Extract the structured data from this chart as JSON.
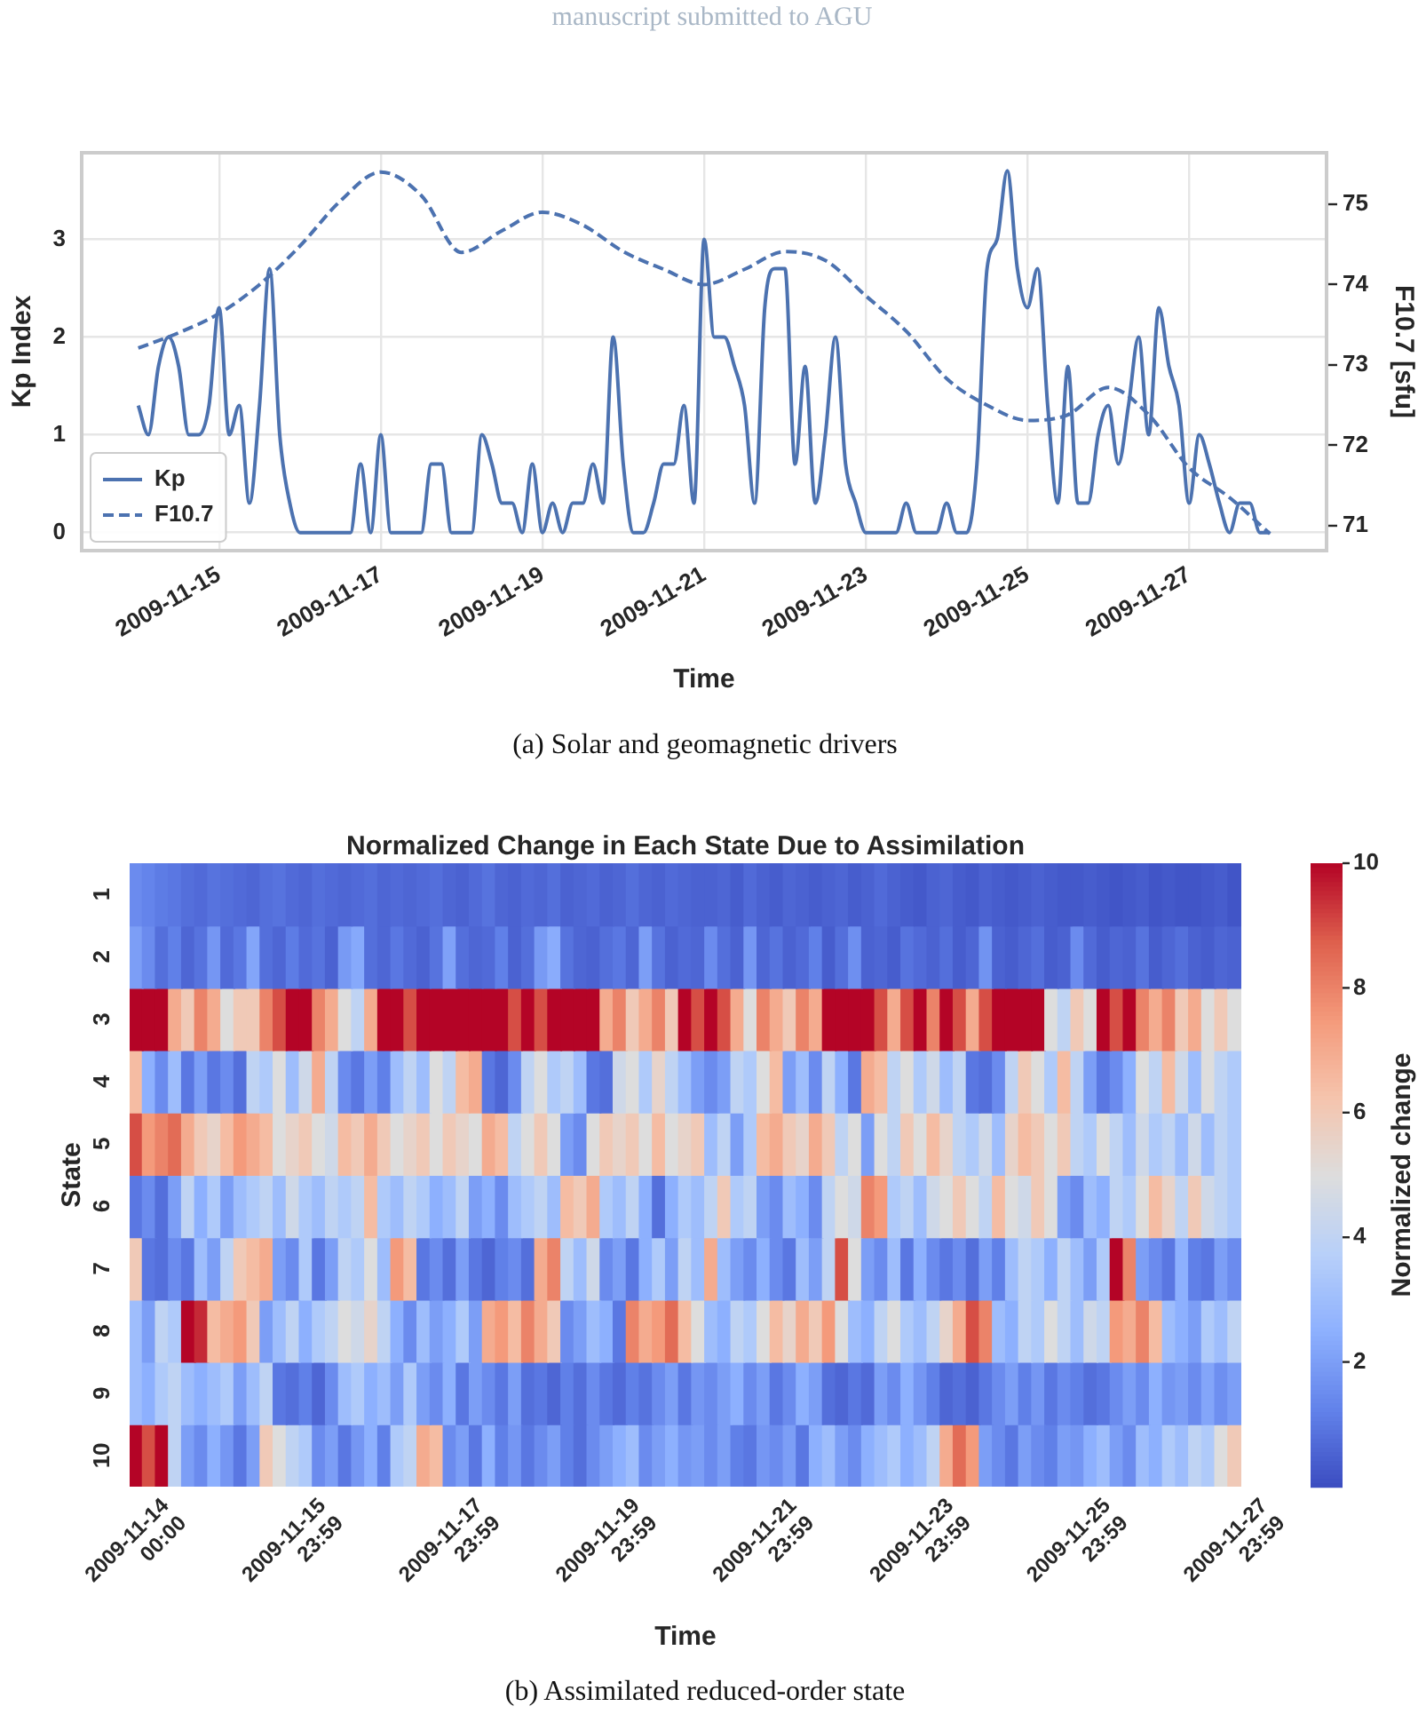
{
  "chart_data": [
    {
      "type": "line",
      "xlabel": "Time",
      "ylabel": "Kp Index",
      "y2label": "F10.7 [sfu]",
      "x": [
        "2009-11-14T00:00",
        "2009-11-14T03:00",
        "2009-11-14T06:00",
        "2009-11-14T09:00",
        "2009-11-14T12:00",
        "2009-11-14T15:00",
        "2009-11-14T18:00",
        "2009-11-14T21:00",
        "2009-11-15T00:00",
        "2009-11-15T03:00",
        "2009-11-15T06:00",
        "2009-11-15T09:00",
        "2009-11-15T12:00",
        "2009-11-15T15:00",
        "2009-11-15T18:00",
        "2009-11-15T21:00",
        "2009-11-16T00:00",
        "2009-11-16T03:00",
        "2009-11-16T06:00",
        "2009-11-16T09:00",
        "2009-11-16T12:00",
        "2009-11-16T15:00",
        "2009-11-16T18:00",
        "2009-11-16T21:00",
        "2009-11-17T00:00",
        "2009-11-17T03:00",
        "2009-11-17T06:00",
        "2009-11-17T09:00",
        "2009-11-17T12:00",
        "2009-11-17T15:00",
        "2009-11-17T18:00",
        "2009-11-17T21:00",
        "2009-11-18T00:00",
        "2009-11-18T03:00",
        "2009-11-18T06:00",
        "2009-11-18T09:00",
        "2009-11-18T12:00",
        "2009-11-18T15:00",
        "2009-11-18T18:00",
        "2009-11-18T21:00",
        "2009-11-19T00:00",
        "2009-11-19T03:00",
        "2009-11-19T06:00",
        "2009-11-19T09:00",
        "2009-11-19T12:00",
        "2009-11-19T15:00",
        "2009-11-19T18:00",
        "2009-11-19T21:00",
        "2009-11-20T00:00",
        "2009-11-20T03:00",
        "2009-11-20T06:00",
        "2009-11-20T09:00",
        "2009-11-20T12:00",
        "2009-11-20T15:00",
        "2009-11-20T18:00",
        "2009-11-20T21:00",
        "2009-11-21T00:00",
        "2009-11-21T03:00",
        "2009-11-21T06:00",
        "2009-11-21T09:00",
        "2009-11-21T12:00",
        "2009-11-21T15:00",
        "2009-11-21T18:00",
        "2009-11-21T21:00",
        "2009-11-22T00:00",
        "2009-11-22T03:00",
        "2009-11-22T06:00",
        "2009-11-22T09:00",
        "2009-11-22T12:00",
        "2009-11-22T15:00",
        "2009-11-22T18:00",
        "2009-11-22T21:00",
        "2009-11-23T00:00",
        "2009-11-23T03:00",
        "2009-11-23T06:00",
        "2009-11-23T09:00",
        "2009-11-23T12:00",
        "2009-11-23T15:00",
        "2009-11-23T18:00",
        "2009-11-23T21:00",
        "2009-11-24T00:00",
        "2009-11-24T03:00",
        "2009-11-24T06:00",
        "2009-11-24T09:00",
        "2009-11-24T12:00",
        "2009-11-24T15:00",
        "2009-11-24T18:00",
        "2009-11-24T21:00",
        "2009-11-25T00:00",
        "2009-11-25T03:00",
        "2009-11-25T06:00",
        "2009-11-25T09:00",
        "2009-11-25T12:00",
        "2009-11-25T15:00",
        "2009-11-25T18:00",
        "2009-11-25T21:00",
        "2009-11-26T00:00",
        "2009-11-26T03:00",
        "2009-11-26T06:00",
        "2009-11-26T09:00",
        "2009-11-26T12:00",
        "2009-11-26T15:00",
        "2009-11-26T18:00",
        "2009-11-26T21:00",
        "2009-11-27T00:00",
        "2009-11-27T03:00",
        "2009-11-27T06:00",
        "2009-11-27T09:00",
        "2009-11-27T12:00",
        "2009-11-27T15:00",
        "2009-11-27T18:00",
        "2009-11-27T21:00",
        "2009-11-28T00:00"
      ],
      "xlim": [
        "2009-11-13T07:12",
        "2009-11-28T16:48"
      ],
      "xticks": [
        "2009-11-15",
        "2009-11-17",
        "2009-11-19",
        "2009-11-21",
        "2009-11-23",
        "2009-11-25",
        "2009-11-27"
      ],
      "ylim": [
        -0.185,
        3.885
      ],
      "yticks": [
        0,
        1,
        2,
        3
      ],
      "y2lim": [
        70.69,
        75.64
      ],
      "y2ticks": [
        71,
        72,
        73,
        74,
        75
      ],
      "grid": true,
      "legend": "bottom left",
      "series": [
        {
          "name": "Kp",
          "color": "#4c72b0",
          "line_style": "solid",
          "values": [
            1.3,
            1.0,
            1.7,
            2.0,
            1.7,
            1.0,
            1.0,
            1.3,
            2.3,
            1.0,
            1.3,
            0.3,
            1.3,
            2.7,
            1.0,
            0.3,
            0,
            0,
            0,
            0,
            0,
            0,
            0.7,
            0,
            1.0,
            0,
            0,
            0,
            0,
            0.7,
            0.7,
            0,
            0,
            0,
            1.0,
            0.7,
            0.3,
            0.3,
            0,
            0.7,
            0,
            0.3,
            0,
            0.3,
            0.3,
            0.7,
            0.3,
            2.0,
            0.7,
            0,
            0,
            0.3,
            0.7,
            0.7,
            1.3,
            0.3,
            3.0,
            2.0,
            2.0,
            1.7,
            1.3,
            0.3,
            2.3,
            2.7,
            2.7,
            0.7,
            1.7,
            0.3,
            1.0,
            2.0,
            0.7,
            0.3,
            0,
            0,
            0,
            0,
            0.3,
            0,
            0,
            0,
            0.3,
            0,
            0,
            0.7,
            2.7,
            3.0,
            3.7,
            2.7,
            2.3,
            2.7,
            1.3,
            0.3,
            1.7,
            0.3,
            0.3,
            1.0,
            1.3,
            0.7,
            1.3,
            2.0,
            1.0,
            2.3,
            1.7,
            1.3,
            0.3,
            1.0,
            0.7,
            0.3,
            0,
            0.3,
            0.3,
            0,
            0
          ]
        },
        {
          "name": "F10.7",
          "color": "#4c72b0",
          "line_style": "dashed",
          "axis": "y2",
          "x": [
            "2009-11-14T00:00",
            "2009-11-14T12:00",
            "2009-11-15T00:00",
            "2009-11-15T12:00",
            "2009-11-16T00:00",
            "2009-11-16T12:00",
            "2009-11-17T00:00",
            "2009-11-17T12:00",
            "2009-11-18T00:00",
            "2009-11-18T12:00",
            "2009-11-19T00:00",
            "2009-11-19T12:00",
            "2009-11-20T00:00",
            "2009-11-20T12:00",
            "2009-11-21T00:00",
            "2009-11-21T12:00",
            "2009-11-22T00:00",
            "2009-11-22T12:00",
            "2009-11-23T00:00",
            "2009-11-23T12:00",
            "2009-11-24T00:00",
            "2009-11-24T12:00",
            "2009-11-25T00:00",
            "2009-11-25T12:00",
            "2009-11-26T00:00",
            "2009-11-26T12:00",
            "2009-11-27T00:00",
            "2009-11-27T12:00",
            "2009-11-28T00:00"
          ],
          "values": [
            73.21,
            73.4,
            73.64,
            74.0,
            74.48,
            75.04,
            75.4,
            75.11,
            74.4,
            74.67,
            74.9,
            74.74,
            74.41,
            74.19,
            74.0,
            74.19,
            74.41,
            74.3,
            73.86,
            73.42,
            72.83,
            72.5,
            72.31,
            72.38,
            72.72,
            72.38,
            71.72,
            71.35,
            70.9
          ]
        }
      ],
      "annotations": [
        "manuscript submitted to AGU",
        "(a) Solar and geomagnetic drivers"
      ]
    },
    {
      "type": "heatmap",
      "title": "Normalized Change in Each State Due to Assimilation",
      "xlabel": "Time",
      "ylabel": "State",
      "clabel": "Normalized change",
      "categories": [
        "2009-11-14\n00:00",
        null,
        null,
        null,
        null,
        null,
        null,
        null,
        null,
        null,
        null,
        null,
        "2009-11-15\n23:59",
        null,
        null,
        null,
        null,
        null,
        null,
        null,
        null,
        null,
        null,
        null,
        "2009-11-17\n23:59",
        null,
        null,
        null,
        null,
        null,
        null,
        null,
        null,
        null,
        null,
        null,
        "2009-11-19\n23:59",
        null,
        null,
        null,
        null,
        null,
        null,
        null,
        null,
        null,
        null,
        null,
        "2009-11-21\n23:59",
        null,
        null,
        null,
        null,
        null,
        null,
        null,
        null,
        null,
        null,
        null,
        "2009-11-23\n23:59",
        null,
        null,
        null,
        null,
        null,
        null,
        null,
        null,
        null,
        null,
        null,
        "2009-11-25\n23:59",
        null,
        null,
        null,
        null,
        null,
        null,
        null,
        null,
        null,
        null,
        null,
        "2009-11-27\n23:59"
      ],
      "y_categories": [
        "1",
        "2",
        "3",
        "4",
        "5",
        "6",
        "7",
        "8",
        "9",
        "10"
      ],
      "cells": [
        [
          1.5,
          1.3,
          1.1,
          1.0,
          0.8,
          0.7,
          0.9,
          0.8,
          0.7,
          0.6,
          0.8,
          0.9,
          0.7,
          0.6,
          0.8,
          0.7,
          0.6,
          0.7,
          0.8,
          0.6,
          0.7,
          0.6,
          0.7,
          0.8,
          0.6,
          0.5,
          0.7,
          0.9,
          0.6,
          0.5,
          0.7,
          0.6,
          0.8,
          0.5,
          0.6,
          0.7,
          0.5,
          0.6,
          0.8,
          0.6,
          0.5,
          0.7,
          0.6,
          0.5,
          0.5,
          0.6,
          0.4,
          0.7,
          0.5,
          0.4,
          0.6,
          0.5,
          0.4,
          0.5,
          0.6,
          0.4,
          0.5,
          0.7,
          0.5,
          0.4,
          0.3,
          0.5,
          0.6,
          0.4,
          0.3,
          0.5,
          0.4,
          0.3,
          0.4,
          0.5,
          0.4,
          0.3,
          0.3,
          0.4,
          0.3,
          0.2,
          0.3,
          0.4,
          0.2,
          0.3,
          0.2,
          0.2,
          0.3,
          0.4,
          0.2
        ],
        [
          2.0,
          1.5,
          0.8,
          1.2,
          0.6,
          0.9,
          1.8,
          0.7,
          1.0,
          2.2,
          0.8,
          0.6,
          1.1,
          0.7,
          0.9,
          0.5,
          1.9,
          2.3,
          0.8,
          0.6,
          1.0,
          0.7,
          0.5,
          0.9,
          2.1,
          0.8,
          0.6,
          0.7,
          1.2,
          0.5,
          0.8,
          1.9,
          2.4,
          0.9,
          0.6,
          0.5,
          0.8,
          1.0,
          0.6,
          2.0,
          0.9,
          0.5,
          0.7,
          0.6,
          1.5,
          0.8,
          0.5,
          1.8,
          0.6,
          0.9,
          0.5,
          0.7,
          1.2,
          0.4,
          0.8,
          1.6,
          0.5,
          0.6,
          0.4,
          0.9,
          0.7,
          0.5,
          0.8,
          0.4,
          0.6,
          1.7,
          0.5,
          0.4,
          0.6,
          0.8,
          0.4,
          0.5,
          1.5,
          0.7,
          0.4,
          0.6,
          0.5,
          0.9,
          0.4,
          0.6,
          0.8,
          0.5,
          0.4,
          0.6,
          0.5
        ],
        [
          10,
          10,
          10,
          7,
          6,
          8,
          7,
          5,
          6,
          6,
          8,
          9,
          10,
          10,
          8,
          7,
          5,
          4,
          7,
          10,
          10,
          9,
          10,
          10,
          10,
          10,
          10,
          10,
          10,
          9,
          10,
          9,
          10,
          10,
          10,
          10,
          7,
          8,
          6,
          7,
          8,
          6,
          10,
          9,
          10,
          9,
          7,
          5,
          8,
          7,
          6,
          8,
          7,
          10,
          10,
          10,
          10,
          9,
          7,
          9,
          10,
          8,
          10,
          9,
          7,
          9,
          10,
          10,
          10,
          10,
          5,
          4,
          6,
          5,
          10,
          9,
          10,
          8,
          7,
          8,
          6,
          7,
          5,
          6,
          5
        ],
        [
          6.5,
          2.5,
          1.5,
          3,
          1,
          2,
          1,
          1.5,
          0.8,
          4,
          3.5,
          5,
          3,
          4.5,
          7,
          4,
          1.5,
          1,
          2,
          1.2,
          3,
          4,
          3,
          5,
          4,
          6.5,
          7,
          1,
          0.6,
          1.5,
          4,
          5,
          3.5,
          4,
          3,
          1,
          0.8,
          4.5,
          5,
          3.5,
          5.5,
          4,
          3,
          2,
          1.5,
          2,
          4,
          3.5,
          5,
          6.5,
          2,
          3,
          1.5,
          4,
          2.5,
          1,
          7,
          6.5,
          4,
          5,
          3.5,
          4.5,
          3,
          4,
          1,
          0.8,
          1.5,
          4,
          6,
          5,
          3.5,
          6.5,
          4,
          2,
          1,
          1.5,
          2.5,
          5,
          4,
          6.5,
          4.5,
          3,
          5,
          4,
          3.5
        ],
        [
          9,
          7.5,
          8,
          8.5,
          7,
          6,
          5.5,
          6.5,
          7.5,
          7,
          6.5,
          5,
          5.5,
          6,
          5,
          4.5,
          6.5,
          6,
          7,
          6,
          5,
          5.5,
          6,
          5,
          6,
          5.5,
          5,
          7,
          6.5,
          4,
          5,
          6,
          5,
          2,
          1.5,
          5,
          6,
          5.5,
          6,
          5,
          6.5,
          5,
          5.5,
          6,
          3,
          4,
          2,
          3.5,
          6.5,
          7,
          6,
          5.5,
          7,
          6,
          4,
          5,
          2,
          5,
          4,
          6,
          5,
          6.5,
          5.5,
          4,
          3.5,
          4.5,
          3,
          5.5,
          6.5,
          6,
          5,
          6,
          4,
          3.5,
          5,
          4,
          3,
          4.5,
          3.5,
          4,
          3,
          4.5,
          3,
          4,
          3.5
        ],
        [
          1,
          1.5,
          0.8,
          2,
          4,
          2.5,
          3.5,
          2,
          3,
          3.5,
          4,
          3,
          4.5,
          3.5,
          3,
          4,
          3.5,
          4,
          6.5,
          3.5,
          3,
          4,
          3.5,
          2.5,
          3,
          4,
          2,
          2.5,
          1.5,
          3,
          3.5,
          4,
          3,
          6.5,
          6,
          7,
          3.5,
          3,
          4,
          2.5,
          0.8,
          2.5,
          3.5,
          3,
          4,
          6,
          3.5,
          4,
          2,
          1.5,
          3,
          2.5,
          1.5,
          4,
          5,
          4.5,
          8,
          7.5,
          3.5,
          4,
          3,
          4.5,
          5,
          6,
          5,
          4,
          6.5,
          5,
          4.5,
          6,
          5,
          2,
          1.5,
          3,
          2.5,
          4,
          3.5,
          5,
          6.5,
          5.5,
          4,
          6,
          4.5,
          4,
          3.5
        ],
        [
          6,
          1,
          0.8,
          1.5,
          1,
          3,
          2,
          4,
          6,
          6.5,
          7,
          2,
          1.5,
          3.5,
          1,
          2,
          4,
          3.5,
          5,
          3,
          7.5,
          6.5,
          1,
          1.5,
          0.8,
          2,
          1,
          0.6,
          1.2,
          1.5,
          0.8,
          7,
          8,
          4,
          3,
          4.5,
          1.5,
          2,
          1,
          2.5,
          3.5,
          2,
          4,
          3,
          7,
          3,
          2,
          1.5,
          2.5,
          1.5,
          1,
          3,
          2,
          4,
          9,
          5,
          2,
          1.5,
          3,
          1,
          2.5,
          1.5,
          1,
          1.5,
          0.8,
          2,
          1.2,
          3,
          4,
          3.5,
          2.5,
          4,
          3,
          2,
          3.5,
          10,
          8,
          2,
          1.5,
          1,
          2.5,
          1.2,
          1,
          2,
          1.5
        ],
        [
          3,
          2,
          4,
          3.5,
          10,
          9.5,
          6.5,
          7,
          7.5,
          6,
          2,
          3,
          4,
          2.5,
          3.5,
          4,
          5,
          4.5,
          5.5,
          4,
          2.5,
          1.5,
          3,
          2,
          2.5,
          3.5,
          2,
          7,
          7.5,
          6.5,
          8,
          7,
          6,
          1.5,
          2,
          3,
          2.5,
          1,
          8,
          7,
          7.5,
          8.5,
          6.5,
          5,
          3,
          2.5,
          4,
          3.5,
          5,
          6.5,
          5.5,
          7,
          6,
          7.5,
          5,
          3,
          2.5,
          4,
          5,
          3.5,
          3,
          4,
          5.5,
          7,
          9,
          8,
          3,
          2.5,
          4,
          3.5,
          5,
          4,
          3,
          4.5,
          4,
          7.5,
          7,
          8,
          6.5,
          3,
          2.5,
          2,
          3.5,
          3,
          4
        ],
        [
          3,
          2.5,
          3.5,
          4,
          3,
          2.5,
          3,
          3.5,
          2,
          3,
          4,
          1,
          0.8,
          1.2,
          0.6,
          1.5,
          3,
          3.5,
          2.5,
          3,
          2,
          3.5,
          2,
          1.5,
          2.5,
          1,
          2,
          1.5,
          1,
          2,
          0.8,
          1,
          0.6,
          1.2,
          0.8,
          1.5,
          1,
          0.7,
          1.2,
          0.9,
          1.5,
          2,
          1,
          1.8,
          1.5,
          2,
          2.5,
          1.5,
          2,
          1,
          1.5,
          2.5,
          2,
          0.8,
          0.6,
          1,
          0.7,
          2,
          1.5,
          2.5,
          1.8,
          1.2,
          0.6,
          0.8,
          0.5,
          1,
          1.5,
          2,
          1.2,
          1.8,
          1,
          1.5,
          1.2,
          0.8,
          1,
          1.5,
          2,
          1.5,
          2.5,
          1.8,
          2,
          1.5,
          2.2,
          1.6,
          2
        ],
        [
          10,
          9,
          10,
          4,
          2,
          1.5,
          2.5,
          1.8,
          1,
          2,
          6,
          5,
          4,
          3.5,
          1.5,
          2,
          1,
          1.8,
          2.5,
          1.2,
          3.5,
          4,
          7,
          6.5,
          1.5,
          2,
          1,
          2.5,
          1.2,
          1.8,
          1,
          1.5,
          2,
          1.2,
          0.8,
          1.5,
          2,
          2.5,
          3,
          1.5,
          2,
          2.5,
          1.8,
          2,
          1.5,
          2,
          1.2,
          1,
          1.8,
          1.5,
          2,
          1,
          2.5,
          3,
          2,
          1.5,
          2.5,
          3,
          3.5,
          2.5,
          3,
          4,
          7,
          8.5,
          7.5,
          2,
          1.5,
          1,
          2,
          1.5,
          1.2,
          2,
          1.8,
          2.5,
          3,
          2,
          1.5,
          3,
          2.5,
          3.5,
          3,
          4,
          3.5,
          5,
          6
        ]
      ],
      "clim": [
        0,
        10
      ],
      "cticks": [
        2,
        4,
        6,
        8,
        10
      ],
      "annotations": [
        "(b) Assimilated reduced-order state"
      ]
    }
  ]
}
